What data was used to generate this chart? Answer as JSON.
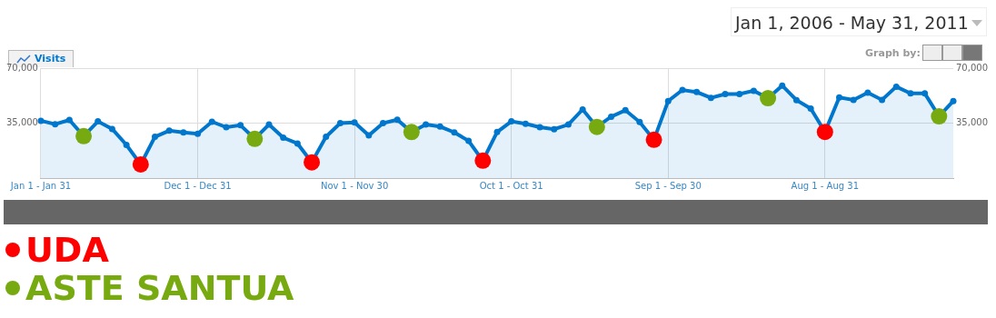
{
  "chart_data": {
    "type": "area",
    "categories": [
      "Jan 1 - Jan 31",
      null,
      null,
      null,
      null,
      null,
      null,
      null,
      null,
      null,
      null,
      "Dec 1 - Dec 31",
      null,
      null,
      null,
      null,
      null,
      null,
      null,
      null,
      null,
      null,
      "Nov 1 - Nov 30",
      null,
      null,
      null,
      null,
      null,
      null,
      null,
      null,
      null,
      null,
      "Oct 1 - Oct 31",
      null,
      null,
      null,
      null,
      null,
      null,
      null,
      null,
      null,
      null,
      "Sep 1 - Sep 30",
      null,
      null,
      null,
      null,
      null,
      null,
      null,
      null,
      null,
      null,
      "Aug 1 - Aug 31",
      null,
      null,
      null,
      null,
      null,
      null,
      null,
      null,
      null
    ],
    "series": [
      {
        "name": "Visits",
        "color": "#0077cc",
        "values": [
          36500,
          34300,
          37000,
          26700,
          36100,
          31300,
          21100,
          8700,
          26300,
          30200,
          29100,
          28200,
          35900,
          32400,
          33700,
          25000,
          34100,
          25700,
          22000,
          10000,
          26300,
          35000,
          35400,
          27200,
          35000,
          37200,
          29300,
          34100,
          32800,
          29100,
          23700,
          11100,
          29300,
          36100,
          34600,
          32400,
          31100,
          34100,
          43700,
          32600,
          39100,
          43200,
          35700,
          24400,
          49100,
          56100,
          54800,
          51100,
          53500,
          53500,
          55600,
          50900,
          58900,
          49600,
          44300,
          29400,
          51300,
          49800,
          54400,
          49800,
          58200,
          53900,
          53900,
          39300,
          49100
        ]
      },
      {
        "name": "UDA",
        "type": "scatter",
        "color": "#ff0000",
        "values": [
          null,
          null,
          null,
          null,
          null,
          null,
          null,
          8700,
          null,
          null,
          null,
          null,
          null,
          null,
          null,
          null,
          null,
          null,
          null,
          10000,
          null,
          null,
          null,
          null,
          null,
          null,
          null,
          null,
          null,
          null,
          null,
          11100,
          null,
          null,
          null,
          null,
          null,
          null,
          null,
          null,
          null,
          null,
          null,
          24400,
          null,
          null,
          null,
          null,
          null,
          null,
          null,
          null,
          null,
          null,
          null,
          29400,
          null,
          null,
          null,
          null,
          null,
          null,
          null,
          null,
          null
        ]
      },
      {
        "name": "ASTE SANTUA",
        "type": "scatter",
        "color": "#77aa11",
        "values": [
          null,
          null,
          null,
          26700,
          null,
          null,
          null,
          null,
          null,
          null,
          null,
          null,
          null,
          null,
          null,
          25000,
          null,
          null,
          null,
          null,
          null,
          null,
          null,
          null,
          null,
          null,
          29300,
          null,
          null,
          null,
          null,
          null,
          null,
          null,
          null,
          null,
          null,
          null,
          null,
          32600,
          null,
          null,
          null,
          null,
          null,
          null,
          null,
          null,
          null,
          null,
          null,
          50900,
          null,
          null,
          null,
          null,
          null,
          null,
          null,
          null,
          null,
          null,
          null,
          39300,
          null
        ]
      }
    ],
    "ylim": [
      0,
      70000
    ],
    "yticks": [
      {
        "value": 35000,
        "label": "35,000"
      },
      {
        "value": 70000,
        "label": "70,000"
      }
    ],
    "y2lim": [
      0,
      70000
    ],
    "y2ticks": [
      {
        "value": 35000,
        "label": "35,000"
      },
      {
        "value": 70000,
        "label": "70,000"
      }
    ],
    "grid": true,
    "marker": "circle",
    "legend": "bottom",
    "annotations": [
      "Jan 1, 2006 - May 31, 2011",
      "Graph by:"
    ]
  }
}
